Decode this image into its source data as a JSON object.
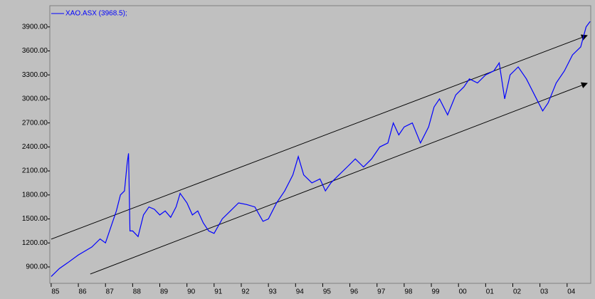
{
  "chart_data": {
    "type": "line",
    "series": [
      {
        "name": "XAO.ASX (3968.5);",
        "color": "#0000ff",
        "x": [
          1985.0,
          1985.3,
          1985.6,
          1986.0,
          1986.5,
          1986.8,
          1987.0,
          1987.2,
          1987.4,
          1987.55,
          1987.7,
          1987.8,
          1987.85,
          1987.9,
          1988.0,
          1988.2,
          1988.4,
          1988.6,
          1988.8,
          1989.0,
          1989.2,
          1989.4,
          1989.6,
          1989.75,
          1990.0,
          1990.2,
          1990.4,
          1990.6,
          1990.8,
          1991.0,
          1991.3,
          1991.6,
          1991.9,
          1992.2,
          1992.5,
          1992.8,
          1993.0,
          1993.3,
          1993.6,
          1993.9,
          1994.1,
          1994.3,
          1994.6,
          1994.9,
          1995.1,
          1995.3,
          1995.6,
          1995.9,
          1996.2,
          1996.5,
          1996.8,
          1997.1,
          1997.4,
          1997.6,
          1997.8,
          1998.0,
          1998.3,
          1998.6,
          1998.9,
          1999.1,
          1999.3,
          1999.6,
          1999.9,
          2000.2,
          2000.4,
          2000.7,
          2001.0,
          2001.3,
          2001.5,
          2001.7,
          2001.9,
          2002.2,
          2002.5,
          2002.8,
          2003.1,
          2003.3,
          2003.6,
          2003.9,
          2004.2,
          2004.5,
          2004.7,
          2004.85
        ],
        "values": [
          780,
          880,
          950,
          1050,
          1150,
          1250,
          1200,
          1400,
          1600,
          1800,
          1850,
          2200,
          2320,
          1350,
          1350,
          1280,
          1550,
          1650,
          1620,
          1550,
          1600,
          1520,
          1650,
          1820,
          1700,
          1550,
          1600,
          1450,
          1350,
          1320,
          1500,
          1600,
          1700,
          1680,
          1650,
          1470,
          1500,
          1700,
          1850,
          2050,
          2280,
          2050,
          1950,
          2000,
          1850,
          1950,
          2050,
          2150,
          2250,
          2150,
          2250,
          2400,
          2450,
          2700,
          2550,
          2650,
          2700,
          2450,
          2650,
          2900,
          3000,
          2800,
          3050,
          3150,
          3250,
          3200,
          3300,
          3350,
          3450,
          3000,
          3300,
          3400,
          3250,
          3050,
          2850,
          2950,
          3200,
          3350,
          3550,
          3650,
          3900,
          3968.5
        ]
      }
    ],
    "trend_lines": [
      {
        "color": "#000000",
        "x": [
          1985.0,
          2004.74
        ],
        "values": [
          1247,
          3793
        ]
      },
      {
        "color": "#000000",
        "x": [
          1986.44,
          2004.74
        ],
        "values": [
          811,
          3196
        ]
      }
    ],
    "xlim": [
      1984.95,
      2004.87
    ],
    "xticks": [
      {
        "value": 1985,
        "label": "85"
      },
      {
        "value": 1986,
        "label": "86"
      },
      {
        "value": 1987,
        "label": "87"
      },
      {
        "value": 1988,
        "label": "88"
      },
      {
        "value": 1989,
        "label": "89"
      },
      {
        "value": 1990,
        "label": "90"
      },
      {
        "value": 1991,
        "label": "91"
      },
      {
        "value": 1992,
        "label": "92"
      },
      {
        "value": 1993,
        "label": "93"
      },
      {
        "value": 1994,
        "label": "94"
      },
      {
        "value": 1995,
        "label": "95"
      },
      {
        "value": 1996,
        "label": "96"
      },
      {
        "value": 1997,
        "label": "97"
      },
      {
        "value": 1998,
        "label": "98"
      },
      {
        "value": 1999,
        "label": "99"
      },
      {
        "value": 2000,
        "label": "00"
      },
      {
        "value": 2001,
        "label": "01"
      },
      {
        "value": 2002,
        "label": "02"
      },
      {
        "value": 2003,
        "label": "03"
      },
      {
        "value": 2004,
        "label": "04"
      }
    ],
    "ylim": [
      695,
      4165
    ],
    "yticks": [
      {
        "value": 900,
        "label": "900.00"
      },
      {
        "value": 1200,
        "label": "1200.00"
      },
      {
        "value": 1500,
        "label": "1500.00"
      },
      {
        "value": 1800,
        "label": "1800.00"
      },
      {
        "value": 2100,
        "label": "2100.00"
      },
      {
        "value": 2400,
        "label": "2400.00"
      },
      {
        "value": 2700,
        "label": "2700.00"
      },
      {
        "value": 3000,
        "label": "3000.00"
      },
      {
        "value": 3300,
        "label": "3300.00"
      },
      {
        "value": 3600,
        "label": "3600.00"
      },
      {
        "value": 3900,
        "label": "3900.00"
      }
    ]
  }
}
